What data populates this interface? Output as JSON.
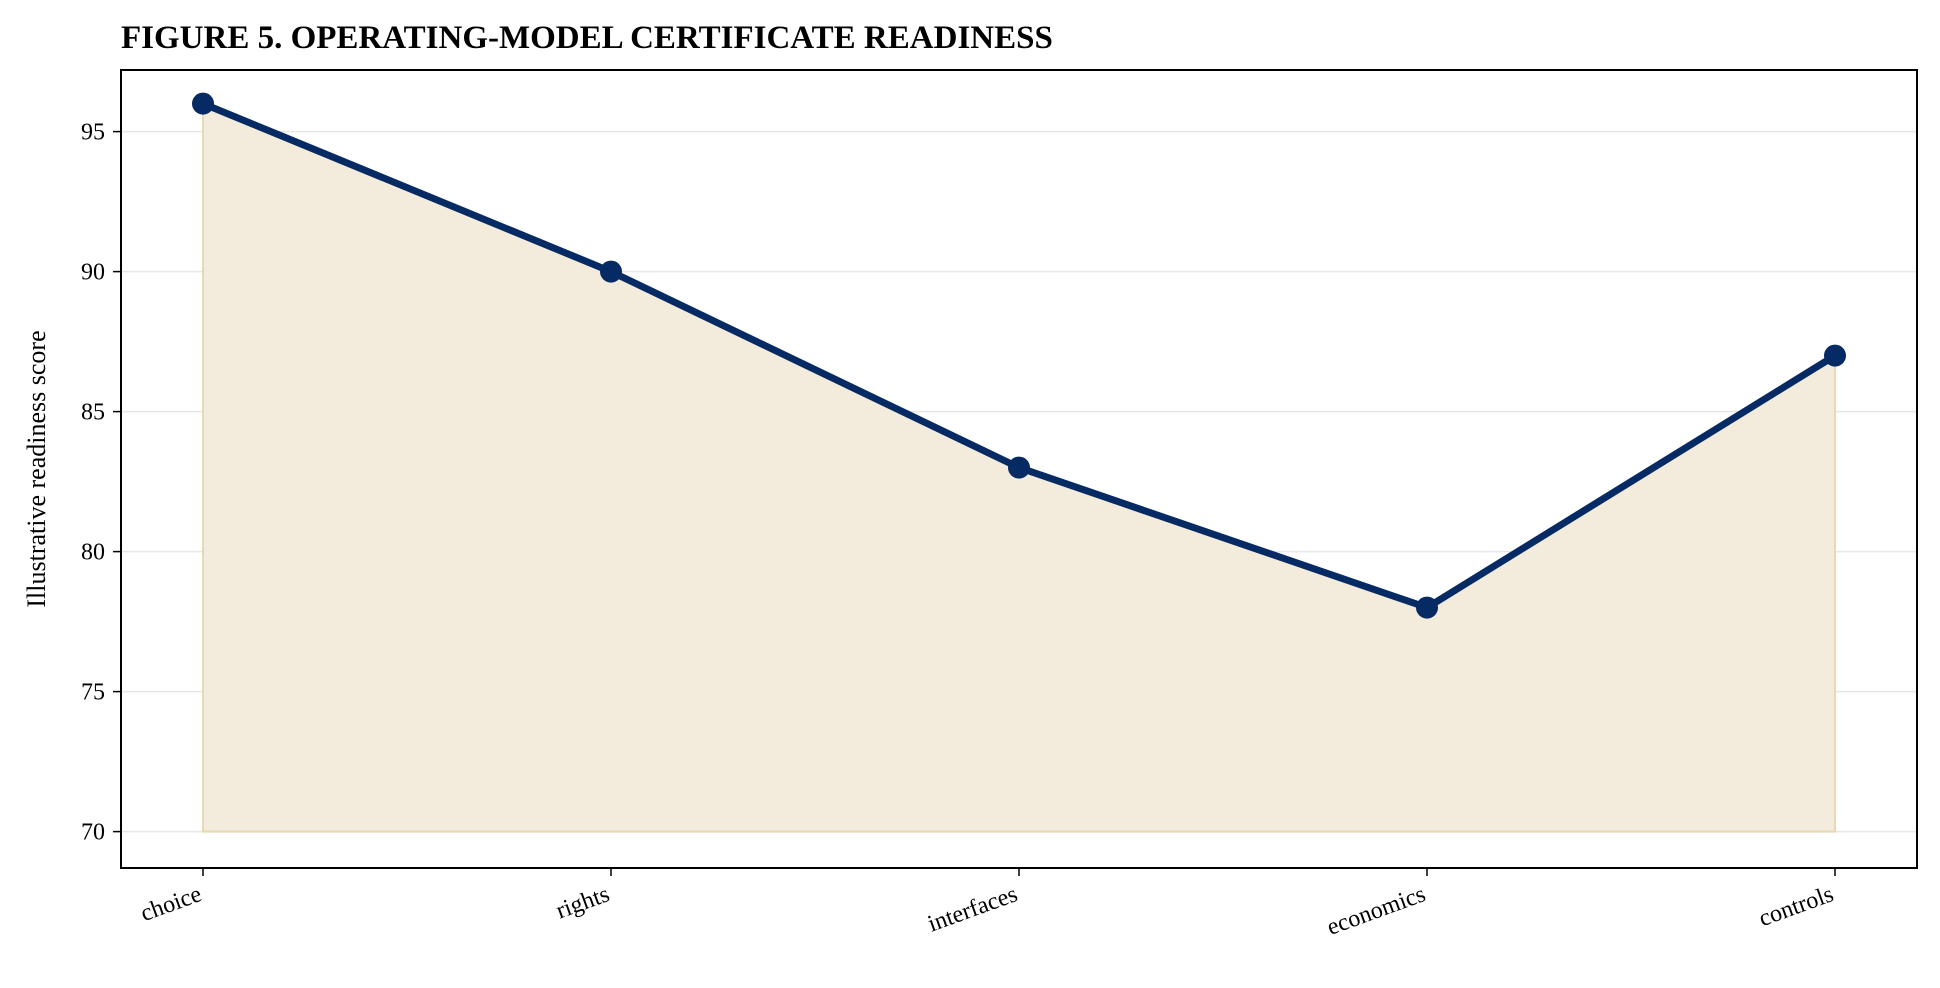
{
  "chart_data": {
    "type": "area",
    "title": "FIGURE 5. OPERATING-MODEL CERTIFICATE READINESS",
    "xlabel": "",
    "ylabel": "Illustrative readiness score",
    "categories": [
      "choice",
      "rights",
      "interfaces",
      "economics",
      "controls"
    ],
    "series": [
      {
        "values": [
          96,
          90,
          83,
          78,
          87
        ]
      }
    ],
    "fill_baseline": 70,
    "ylim": [
      68.7,
      97.2
    ],
    "yticks": [
      70,
      75,
      80,
      85,
      90,
      95
    ],
    "grid": "horizontal",
    "x_tick_rotation": "slanted",
    "colors": {
      "line": "#062a63",
      "fill": "#f3ebdb",
      "fill_edge": "#e8d9b3",
      "grid": "#e6e6e6",
      "axis": "#000000"
    }
  }
}
